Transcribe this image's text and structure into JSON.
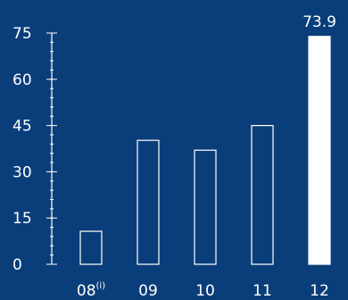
{
  "chart_data": {
    "type": "bar",
    "categories": [
      "08",
      "09",
      "10",
      "11",
      "12"
    ],
    "category_superscripts": [
      "(i)",
      "",
      "",
      "",
      ""
    ],
    "values": [
      10.7,
      40.2,
      37.0,
      45.0,
      73.9
    ],
    "highlighted_index": 4,
    "data_labels": [
      "",
      "",
      "",
      "",
      "73.9"
    ],
    "y_ticks": [
      "0",
      "15",
      "30",
      "45",
      "60",
      "75"
    ],
    "ylim": [
      0,
      75
    ],
    "y_minor_step": 3,
    "title": "",
    "xlabel": "",
    "ylabel": "",
    "grid": false,
    "legend": "none",
    "colors": {
      "background": "#0a3e7a",
      "foreground": "#ffffff"
    }
  }
}
